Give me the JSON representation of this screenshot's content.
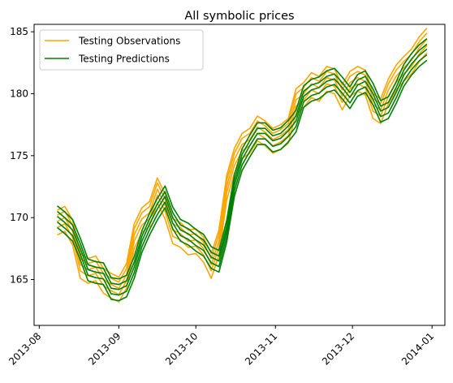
{
  "chart_data": {
    "type": "line",
    "title": "All symbolic prices",
    "xlabel": "",
    "ylabel": "",
    "x_ticks": [
      "2013-08",
      "2013-09",
      "2013-10",
      "2013-11",
      "2013-12",
      "2014-01"
    ],
    "y_ticks": [
      165,
      170,
      175,
      180,
      185
    ],
    "xlim": [
      "2013-07-30",
      "2014-01-06"
    ],
    "ylim": [
      161.3,
      185.6
    ],
    "grid": false,
    "legend": {
      "position": "top-left",
      "entries": [
        {
          "label": "Testing Observations",
          "color": "#ffa500"
        },
        {
          "label": "Testing Predictions",
          "color": "#008000"
        }
      ]
    },
    "x": [
      "2013-08-08",
      "2013-08-11",
      "2013-08-14",
      "2013-08-17",
      "2013-08-20",
      "2013-08-23",
      "2013-08-26",
      "2013-08-29",
      "2013-09-01",
      "2013-09-04",
      "2013-09-07",
      "2013-09-10",
      "2013-09-13",
      "2013-09-16",
      "2013-09-19",
      "2013-09-22",
      "2013-09-25",
      "2013-09-28",
      "2013-10-01",
      "2013-10-04",
      "2013-10-07",
      "2013-10-10",
      "2013-10-13",
      "2013-10-16",
      "2013-10-19",
      "2013-10-22",
      "2013-10-25",
      "2013-10-28",
      "2013-10-31",
      "2013-11-03",
      "2013-11-06",
      "2013-11-09",
      "2013-11-12",
      "2013-11-15",
      "2013-11-18",
      "2013-11-21",
      "2013-11-24",
      "2013-11-27",
      "2013-11-30",
      "2013-12-03",
      "2013-12-06",
      "2013-12-09",
      "2013-12-12",
      "2013-12-15",
      "2013-12-18",
      "2013-12-21",
      "2013-12-24",
      "2013-12-27",
      "2013-12-30"
    ],
    "observation_color": "#ffa500",
    "prediction_color": "#008000",
    "observations_base": [
      169.6,
      169.9,
      168.8,
      166.1,
      165.7,
      165.9,
      164.9,
      164.5,
      164.2,
      165.3,
      168.5,
      169.8,
      170.3,
      172.2,
      170.9,
      168.9,
      168.6,
      168.0,
      168.1,
      167.4,
      166.1,
      168.0,
      172.4,
      174.6,
      175.8,
      176.2,
      177.2,
      176.8,
      176.2,
      176.5,
      177.0,
      179.4,
      179.9,
      180.7,
      180.4,
      181.2,
      181.0,
      179.7,
      180.8,
      181.2,
      180.9,
      179.0,
      178.6,
      180.2,
      181.3,
      182.0,
      182.6,
      183.6,
      184.3
    ],
    "observation_offsets": [
      -1.0,
      -0.4,
      0.1,
      0.6,
      1.0
    ],
    "predictions_base": [
      170.1,
      169.6,
      169.0,
      167.5,
      165.8,
      165.6,
      165.5,
      164.3,
      164.2,
      164.5,
      166.0,
      168.1,
      169.5,
      170.7,
      171.7,
      170.0,
      169.0,
      168.7,
      168.2,
      167.8,
      166.8,
      166.5,
      168.9,
      172.6,
      174.7,
      175.8,
      176.8,
      176.8,
      176.2,
      176.4,
      177.0,
      177.8,
      179.8,
      180.3,
      180.5,
      181.0,
      181.2,
      180.5,
      179.7,
      180.7,
      181.0,
      180.0,
      178.6,
      178.9,
      180.1,
      181.5,
      182.4,
      183.1,
      183.6
    ],
    "prediction_offsets": [
      -0.9,
      -0.45,
      0.0,
      0.4,
      0.85
    ]
  }
}
